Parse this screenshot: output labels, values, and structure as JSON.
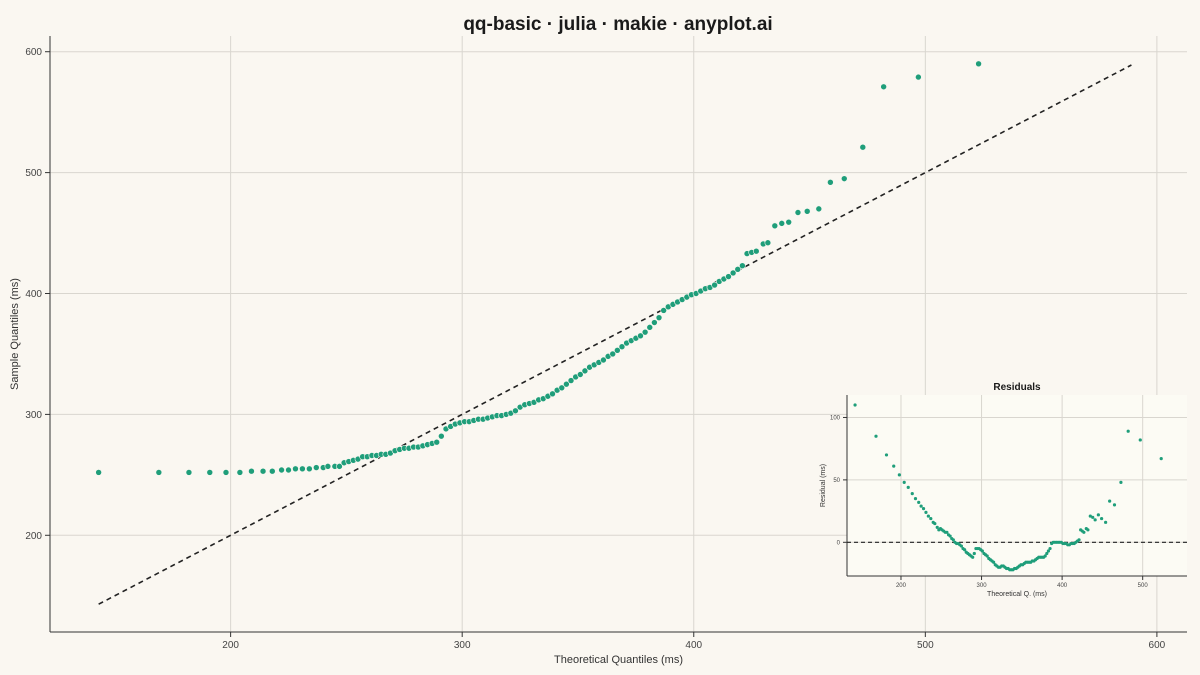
{
  "chart_data": [
    {
      "type": "scatter",
      "title": "qq-basic · julia · makie · anyplot.ai",
      "xlabel": "Theoretical Quantiles (ms)",
      "ylabel": "Sample Quantiles (ms)",
      "xlim": [
        122,
        613
      ],
      "ylim": [
        120,
        613
      ],
      "xticks": [
        200,
        300,
        400,
        500,
        600
      ],
      "yticks": [
        200,
        300,
        400,
        500,
        600
      ],
      "grid": true,
      "point_color": "#1f9e7a",
      "line_color": "#222222",
      "reference_line": {
        "style": "dashed",
        "x": [
          143,
          589
        ],
        "y": [
          143,
          589
        ]
      },
      "series": [
        {
          "points": [
            [
              143,
              252
            ],
            [
              169,
              252
            ],
            [
              182,
              252
            ],
            [
              191,
              252
            ],
            [
              198,
              252
            ],
            [
              204,
              252
            ],
            [
              209,
              253
            ],
            [
              214,
              253
            ],
            [
              218,
              253
            ],
            [
              222,
              254
            ],
            [
              225,
              254
            ],
            [
              228,
              255
            ],
            [
              231,
              255
            ],
            [
              234,
              255
            ],
            [
              237,
              256
            ],
            [
              240,
              256
            ],
            [
              242,
              257
            ],
            [
              245,
              257
            ],
            [
              247,
              257
            ],
            [
              249,
              260
            ],
            [
              251,
              261
            ],
            [
              253,
              262
            ],
            [
              255,
              263
            ],
            [
              257,
              265
            ],
            [
              259,
              265
            ],
            [
              261,
              266
            ],
            [
              263,
              266
            ],
            [
              265,
              267
            ],
            [
              267,
              267
            ],
            [
              269,
              268
            ],
            [
              271,
              270
            ],
            [
              273,
              271
            ],
            [
              275,
              272
            ],
            [
              277,
              272
            ],
            [
              279,
              273
            ],
            [
              281,
              273
            ],
            [
              283,
              274
            ],
            [
              285,
              275
            ],
            [
              287,
              276
            ],
            [
              289,
              277
            ],
            [
              291,
              282
            ],
            [
              293,
              288
            ],
            [
              295,
              290
            ],
            [
              297,
              292
            ],
            [
              299,
              293
            ],
            [
              301,
              294
            ],
            [
              303,
              294
            ],
            [
              305,
              295
            ],
            [
              307,
              296
            ],
            [
              309,
              296
            ],
            [
              311,
              297
            ],
            [
              313,
              298
            ],
            [
              315,
              299
            ],
            [
              317,
              299
            ],
            [
              319,
              300
            ],
            [
              321,
              301
            ],
            [
              323,
              303
            ],
            [
              325,
              306
            ],
            [
              327,
              308
            ],
            [
              329,
              309
            ],
            [
              331,
              310
            ],
            [
              333,
              312
            ],
            [
              335,
              313
            ],
            [
              337,
              315
            ],
            [
              339,
              317
            ],
            [
              341,
              320
            ],
            [
              343,
              322
            ],
            [
              345,
              325
            ],
            [
              347,
              328
            ],
            [
              349,
              331
            ],
            [
              351,
              333
            ],
            [
              353,
              336
            ],
            [
              355,
              339
            ],
            [
              357,
              341
            ],
            [
              359,
              343
            ],
            [
              361,
              345
            ],
            [
              363,
              348
            ],
            [
              365,
              350
            ],
            [
              367,
              353
            ],
            [
              369,
              356
            ],
            [
              371,
              359
            ],
            [
              373,
              361
            ],
            [
              375,
              363
            ],
            [
              377,
              365
            ],
            [
              379,
              368
            ],
            [
              381,
              372
            ],
            [
              383,
              376
            ],
            [
              385,
              380
            ],
            [
              387,
              386
            ],
            [
              389,
              389
            ],
            [
              391,
              391
            ],
            [
              393,
              393
            ],
            [
              395,
              395
            ],
            [
              397,
              397
            ],
            [
              399,
              399
            ],
            [
              401,
              400
            ],
            [
              403,
              402
            ],
            [
              405,
              404
            ],
            [
              407,
              405
            ],
            [
              409,
              407
            ],
            [
              411,
              410
            ],
            [
              413,
              412
            ],
            [
              415,
              414
            ],
            [
              417,
              417
            ],
            [
              419,
              420
            ],
            [
              421,
              423
            ],
            [
              423,
              433
            ],
            [
              425,
              434
            ],
            [
              427,
              435
            ],
            [
              430,
              441
            ],
            [
              432,
              442
            ],
            [
              435,
              456
            ],
            [
              438,
              458
            ],
            [
              441,
              459
            ],
            [
              445,
              467
            ],
            [
              449,
              468
            ],
            [
              454,
              470
            ],
            [
              459,
              492
            ],
            [
              465,
              495
            ],
            [
              473,
              521
            ],
            [
              482,
              571
            ],
            [
              497,
              579
            ],
            [
              523,
              590
            ]
          ]
        }
      ]
    },
    {
      "type": "scatter",
      "title": "Residuals",
      "xlabel": "Theoretical Q. (ms)",
      "ylabel": "Residual (ms)",
      "xlim": [
        133,
        555
      ],
      "ylim": [
        -27,
        118
      ],
      "xticks": [
        200,
        300,
        400,
        500
      ],
      "yticks": [
        0,
        50,
        100
      ],
      "grid": true,
      "reference_line": {
        "style": "dashed",
        "y": 0
      },
      "series": [
        {
          "points": [
            [
              143,
              110
            ],
            [
              169,
              85
            ],
            [
              182,
              70
            ],
            [
              191,
              61
            ],
            [
              198,
              54
            ],
            [
              204,
              48
            ],
            [
              209,
              44
            ],
            [
              214,
              39
            ],
            [
              218,
              35
            ],
            [
              222,
              32
            ],
            [
              225,
              29
            ],
            [
              228,
              27
            ],
            [
              231,
              24
            ],
            [
              234,
              21
            ],
            [
              237,
              19
            ],
            [
              240,
              16
            ],
            [
              242,
              15
            ],
            [
              245,
              12
            ],
            [
              247,
              10
            ],
            [
              249,
              11
            ],
            [
              251,
              10
            ],
            [
              253,
              9
            ],
            [
              255,
              8
            ],
            [
              257,
              8
            ],
            [
              259,
              6
            ],
            [
              261,
              5
            ],
            [
              263,
              3
            ],
            [
              265,
              2
            ],
            [
              267,
              0
            ],
            [
              269,
              -1
            ],
            [
              271,
              -1
            ],
            [
              273,
              -2
            ],
            [
              275,
              -3
            ],
            [
              277,
              -5
            ],
            [
              279,
              -6
            ],
            [
              281,
              -8
            ],
            [
              283,
              -9
            ],
            [
              285,
              -10
            ],
            [
              287,
              -11
            ],
            [
              289,
              -12
            ],
            [
              291,
              -9
            ],
            [
              293,
              -5
            ],
            [
              295,
              -5
            ],
            [
              297,
              -5
            ],
            [
              299,
              -6
            ],
            [
              301,
              -7
            ],
            [
              303,
              -9
            ],
            [
              305,
              -10
            ],
            [
              307,
              -11
            ],
            [
              309,
              -13
            ],
            [
              311,
              -14
            ],
            [
              313,
              -15
            ],
            [
              315,
              -16
            ],
            [
              317,
              -18
            ],
            [
              319,
              -19
            ],
            [
              321,
              -20
            ],
            [
              323,
              -20
            ],
            [
              325,
              -19
            ],
            [
              327,
              -19
            ],
            [
              329,
              -20
            ],
            [
              331,
              -21
            ],
            [
              333,
              -21
            ],
            [
              335,
              -22
            ],
            [
              337,
              -22
            ],
            [
              339,
              -22
            ],
            [
              341,
              -21
            ],
            [
              343,
              -21
            ],
            [
              345,
              -20
            ],
            [
              347,
              -19
            ],
            [
              349,
              -18
            ],
            [
              351,
              -18
            ],
            [
              353,
              -17
            ],
            [
              355,
              -16
            ],
            [
              357,
              -16
            ],
            [
              359,
              -16
            ],
            [
              361,
              -16
            ],
            [
              363,
              -15
            ],
            [
              365,
              -15
            ],
            [
              367,
              -14
            ],
            [
              369,
              -13
            ],
            [
              371,
              -12
            ],
            [
              373,
              -12
            ],
            [
              375,
              -12
            ],
            [
              377,
              -12
            ],
            [
              379,
              -11
            ],
            [
              381,
              -9
            ],
            [
              383,
              -7
            ],
            [
              385,
              -5
            ],
            [
              387,
              -1
            ],
            [
              389,
              0
            ],
            [
              391,
              0
            ],
            [
              393,
              0
            ],
            [
              395,
              0
            ],
            [
              397,
              0
            ],
            [
              399,
              0
            ],
            [
              401,
              -1
            ],
            [
              403,
              -1
            ],
            [
              405,
              -1
            ],
            [
              407,
              -2
            ],
            [
              409,
              -2
            ],
            [
              411,
              -1
            ],
            [
              413,
              -1
            ],
            [
              415,
              -1
            ],
            [
              417,
              0
            ],
            [
              419,
              1
            ],
            [
              421,
              2
            ],
            [
              423,
              10
            ],
            [
              425,
              9
            ],
            [
              427,
              8
            ],
            [
              430,
              11
            ],
            [
              432,
              10
            ],
            [
              435,
              21
            ],
            [
              438,
              20
            ],
            [
              441,
              18
            ],
            [
              445,
              22
            ],
            [
              449,
              19
            ],
            [
              454,
              16
            ],
            [
              459,
              33
            ],
            [
              465,
              30
            ],
            [
              473,
              48
            ],
            [
              482,
              89
            ],
            [
              497,
              82
            ],
            [
              523,
              67
            ]
          ]
        }
      ]
    }
  ]
}
